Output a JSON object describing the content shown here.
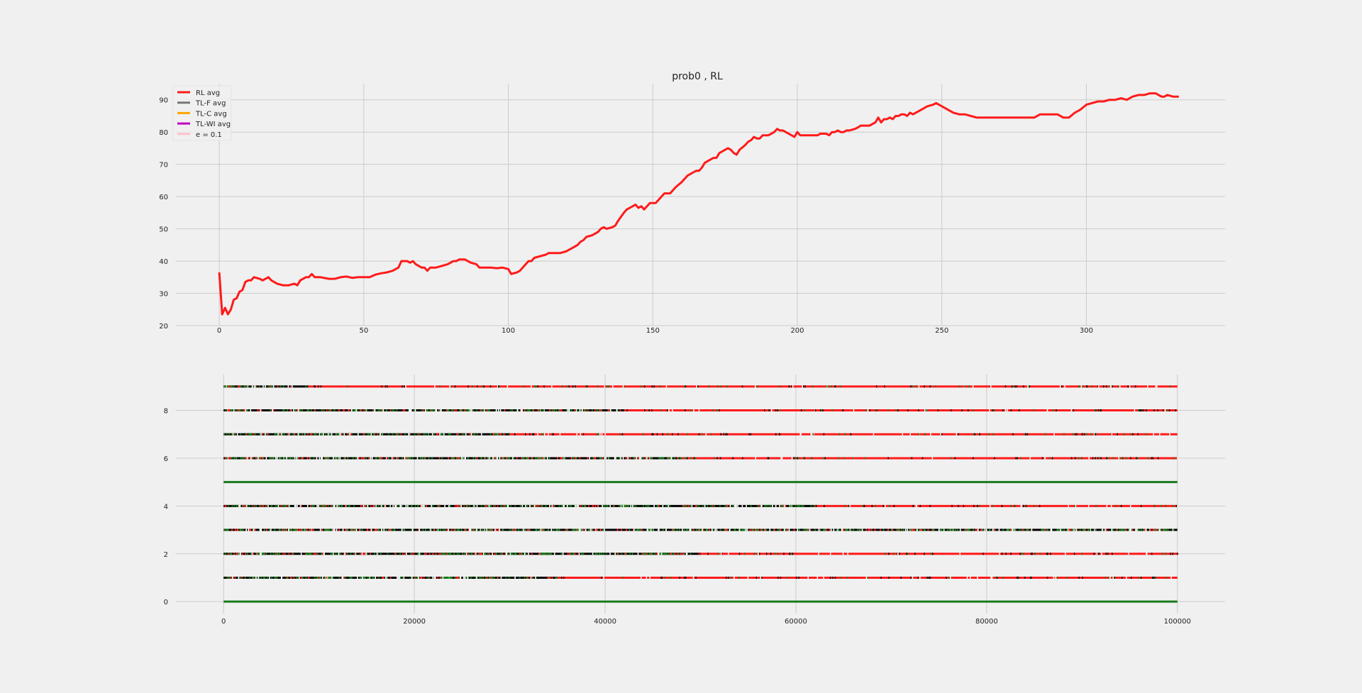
{
  "chart_data": [
    {
      "type": "line",
      "title": "prob0 , RL",
      "xlabel": "",
      "ylabel": "",
      "xlim": [
        -15,
        348
      ],
      "ylim": [
        20,
        95
      ],
      "xticks": [
        0,
        50,
        100,
        150,
        200,
        250,
        300
      ],
      "yticks": [
        20,
        30,
        40,
        50,
        60,
        70,
        80,
        90
      ],
      "grid": true,
      "legend_position": "top-left",
      "legend": [
        {
          "label": "RL avg",
          "color": "#ff1a1a"
        },
        {
          "label": "TL-F avg",
          "color": "#777777"
        },
        {
          "label": "TL-C avg",
          "color": "#ffa500"
        },
        {
          "label": "TL-WI avg",
          "color": "#c000c0"
        },
        {
          "label": "e = 0.1",
          "color": "#ffc0cb"
        }
      ],
      "series": [
        {
          "name": "RL avg",
          "color": "#ff1a1a",
          "points": [
            [
              0,
              36.5
            ],
            [
              1,
              23.5
            ],
            [
              2,
              25.5
            ],
            [
              3,
              23.5
            ],
            [
              4,
              25
            ],
            [
              5,
              28
            ],
            [
              6,
              28.5
            ],
            [
              7,
              30.5
            ],
            [
              8,
              31
            ],
            [
              9,
              33.5
            ],
            [
              10,
              34
            ],
            [
              11,
              34
            ],
            [
              12,
              35
            ],
            [
              14,
              34.5
            ],
            [
              15,
              34
            ],
            [
              16,
              34.5
            ],
            [
              17,
              35
            ],
            [
              18,
              34
            ],
            [
              20,
              33
            ],
            [
              22,
              32.5
            ],
            [
              24,
              32.5
            ],
            [
              26,
              33
            ],
            [
              27,
              32.5
            ],
            [
              28,
              34
            ],
            [
              30,
              35
            ],
            [
              31,
              35
            ],
            [
              32,
              36
            ],
            [
              33,
              35
            ],
            [
              35,
              35
            ],
            [
              38,
              34.5
            ],
            [
              40,
              34.5
            ],
            [
              42,
              35
            ],
            [
              44,
              35.2
            ],
            [
              46,
              34.8
            ],
            [
              48,
              35
            ],
            [
              50,
              35
            ],
            [
              52,
              35
            ],
            [
              54,
              35.8
            ],
            [
              56,
              36.2
            ],
            [
              58,
              36.5
            ],
            [
              60,
              37
            ],
            [
              62,
              38
            ],
            [
              63,
              40
            ],
            [
              65,
              40
            ],
            [
              66,
              39.5
            ],
            [
              67,
              40
            ],
            [
              68,
              39
            ],
            [
              70,
              38
            ],
            [
              71,
              38
            ],
            [
              72,
              37
            ],
            [
              73,
              38
            ],
            [
              75,
              38
            ],
            [
              77,
              38.5
            ],
            [
              79,
              39
            ],
            [
              81,
              40
            ],
            [
              82,
              40
            ],
            [
              83,
              40.5
            ],
            [
              85,
              40.5
            ],
            [
              86,
              40
            ],
            [
              87,
              39.5
            ],
            [
              89,
              39
            ],
            [
              90,
              38
            ],
            [
              92,
              38
            ],
            [
              94,
              38
            ],
            [
              96,
              37.8
            ],
            [
              98,
              38
            ],
            [
              100,
              37.5
            ],
            [
              101,
              36
            ],
            [
              103,
              36.5
            ],
            [
              104,
              37
            ],
            [
              106,
              39
            ],
            [
              107,
              40
            ],
            [
              108,
              40
            ],
            [
              109,
              41
            ],
            [
              111,
              41.5
            ],
            [
              113,
              42
            ],
            [
              114,
              42.5
            ],
            [
              116,
              42.5
            ],
            [
              118,
              42.5
            ],
            [
              120,
              43
            ],
            [
              122,
              44
            ],
            [
              124,
              45
            ],
            [
              125,
              46
            ],
            [
              126,
              46.5
            ],
            [
              127,
              47.5
            ],
            [
              129,
              48
            ],
            [
              131,
              49
            ],
            [
              132,
              50
            ],
            [
              133,
              50.5
            ],
            [
              134,
              50
            ],
            [
              136,
              50.5
            ],
            [
              137,
              51
            ],
            [
              138,
              52.5
            ],
            [
              140,
              55
            ],
            [
              141,
              56
            ],
            [
              142,
              56.5
            ],
            [
              143,
              57
            ],
            [
              144,
              57.5
            ],
            [
              145,
              56.5
            ],
            [
              146,
              57
            ],
            [
              147,
              56
            ],
            [
              148,
              57
            ],
            [
              149,
              58
            ],
            [
              151,
              58
            ],
            [
              152,
              59
            ],
            [
              153,
              60
            ],
            [
              154,
              61
            ],
            [
              156,
              61
            ],
            [
              157,
              62
            ],
            [
              158,
              63
            ],
            [
              160,
              64.5
            ],
            [
              161,
              65.5
            ],
            [
              162,
              66.5
            ],
            [
              163,
              67
            ],
            [
              164,
              67.5
            ],
            [
              165,
              68
            ],
            [
              166,
              68
            ],
            [
              167,
              69
            ],
            [
              168,
              70.5
            ],
            [
              170,
              71.5
            ],
            [
              171,
              72
            ],
            [
              172,
              72
            ],
            [
              173,
              73.5
            ],
            [
              174,
              74
            ],
            [
              175,
              74.5
            ],
            [
              176,
              75
            ],
            [
              177,
              74.5
            ],
            [
              178,
              73.5
            ],
            [
              179,
              73
            ],
            [
              180,
              74.5
            ],
            [
              182,
              76
            ],
            [
              183,
              77
            ],
            [
              184,
              77.5
            ],
            [
              185,
              78.5
            ],
            [
              186,
              78
            ],
            [
              187,
              78
            ],
            [
              188,
              79
            ],
            [
              190,
              79
            ],
            [
              191,
              79.5
            ],
            [
              192,
              80
            ],
            [
              193,
              81
            ],
            [
              194,
              80.5
            ],
            [
              195,
              80.5
            ],
            [
              196,
              80
            ],
            [
              197,
              79.5
            ],
            [
              198,
              79
            ],
            [
              199,
              78.5
            ],
            [
              200,
              80
            ],
            [
              201,
              79
            ],
            [
              203,
              79
            ],
            [
              205,
              79
            ],
            [
              207,
              79
            ],
            [
              208,
              79.5
            ],
            [
              210,
              79.5
            ],
            [
              211,
              79
            ],
            [
              212,
              80
            ],
            [
              213,
              80
            ],
            [
              214,
              80.5
            ],
            [
              215,
              80
            ],
            [
              216,
              80
            ],
            [
              217,
              80.5
            ],
            [
              218,
              80.5
            ],
            [
              220,
              81
            ],
            [
              221,
              81.5
            ],
            [
              222,
              82
            ],
            [
              223,
              82
            ],
            [
              225,
              82
            ],
            [
              226,
              82.5
            ],
            [
              227,
              83
            ],
            [
              228,
              84.5
            ],
            [
              229,
              83
            ],
            [
              230,
              84
            ],
            [
              231,
              84
            ],
            [
              232,
              84.5
            ],
            [
              233,
              84
            ],
            [
              234,
              85
            ],
            [
              235,
              85
            ],
            [
              236,
              85.5
            ],
            [
              237,
              85.5
            ],
            [
              238,
              85
            ],
            [
              239,
              86
            ],
            [
              240,
              85.5
            ],
            [
              241,
              86
            ],
            [
              243,
              87
            ],
            [
              245,
              88
            ],
            [
              247,
              88.5
            ],
            [
              248,
              89
            ],
            [
              249,
              88.5
            ],
            [
              250,
              88
            ],
            [
              252,
              87
            ],
            [
              254,
              86
            ],
            [
              256,
              85.5
            ],
            [
              258,
              85.5
            ],
            [
              260,
              85
            ],
            [
              262,
              84.5
            ],
            [
              264,
              84.5
            ],
            [
              266,
              84.5
            ],
            [
              268,
              84.5
            ],
            [
              270,
              84.5
            ],
            [
              272,
              84.5
            ],
            [
              274,
              84.5
            ],
            [
              276,
              84.5
            ],
            [
              278,
              84.5
            ],
            [
              280,
              84.5
            ],
            [
              282,
              84.5
            ],
            [
              284,
              85.5
            ],
            [
              286,
              85.5
            ],
            [
              288,
              85.5
            ],
            [
              290,
              85.5
            ],
            [
              292,
              84.5
            ],
            [
              294,
              84.5
            ],
            [
              296,
              86
            ],
            [
              298,
              87
            ],
            [
              300,
              88.5
            ],
            [
              302,
              89
            ],
            [
              304,
              89.5
            ],
            [
              306,
              89.5
            ],
            [
              308,
              90
            ],
            [
              310,
              90
            ],
            [
              312,
              90.5
            ],
            [
              314,
              90
            ],
            [
              316,
              91
            ],
            [
              318,
              91.5
            ],
            [
              320,
              91.5
            ],
            [
              322,
              92
            ],
            [
              324,
              92
            ],
            [
              325,
              91.5
            ],
            [
              326,
              91
            ],
            [
              327,
              91
            ],
            [
              328,
              91.5
            ],
            [
              330,
              91
            ],
            [
              332,
              91
            ]
          ]
        }
      ]
    },
    {
      "type": "scatter",
      "title": "",
      "xlabel": "",
      "ylabel": "",
      "xlim": [
        -5000,
        105000
      ],
      "ylim": [
        -0.5,
        9.5
      ],
      "xticks": [
        0,
        20000,
        40000,
        60000,
        80000,
        100000
      ],
      "yticks": [
        0,
        2,
        4,
        6,
        8
      ],
      "grid": true,
      "x_extent": [
        0,
        100000
      ],
      "rows": [
        0,
        1,
        2,
        3,
        4,
        5,
        6,
        7,
        8,
        9
      ],
      "colors": {
        "correct": "#1a7a1a",
        "wrong": "#ff1a1a",
        "other": "#000000"
      },
      "segments": [
        {
          "y": 0,
          "from": 0,
          "to": 100000,
          "class": "correct"
        },
        {
          "y": 1,
          "from": 0,
          "to": 35000,
          "class": "mixed"
        },
        {
          "y": 1,
          "from": 35000,
          "to": 100000,
          "class": "wrong"
        },
        {
          "y": 2,
          "from": 0,
          "to": 50000,
          "class": "mixed"
        },
        {
          "y": 2,
          "from": 50000,
          "to": 100000,
          "class": "wrong"
        },
        {
          "y": 3,
          "from": 0,
          "to": 100000,
          "class": "mixed"
        },
        {
          "y": 4,
          "from": 0,
          "to": 62000,
          "class": "mixed"
        },
        {
          "y": 4,
          "from": 62000,
          "to": 100000,
          "class": "wrong"
        },
        {
          "y": 5,
          "from": 0,
          "to": 100000,
          "class": "correct"
        },
        {
          "y": 6,
          "from": 0,
          "to": 48000,
          "class": "mixed"
        },
        {
          "y": 6,
          "from": 48000,
          "to": 100000,
          "class": "wrong"
        },
        {
          "y": 7,
          "from": 0,
          "to": 30000,
          "class": "mixed"
        },
        {
          "y": 7,
          "from": 30000,
          "to": 100000,
          "class": "wrong"
        },
        {
          "y": 8,
          "from": 0,
          "to": 42000,
          "class": "mixed"
        },
        {
          "y": 8,
          "from": 42000,
          "to": 100000,
          "class": "wrong"
        },
        {
          "y": 9,
          "from": 0,
          "to": 9000,
          "class": "mixed"
        },
        {
          "y": 9,
          "from": 9000,
          "to": 100000,
          "class": "wrong"
        }
      ]
    }
  ]
}
